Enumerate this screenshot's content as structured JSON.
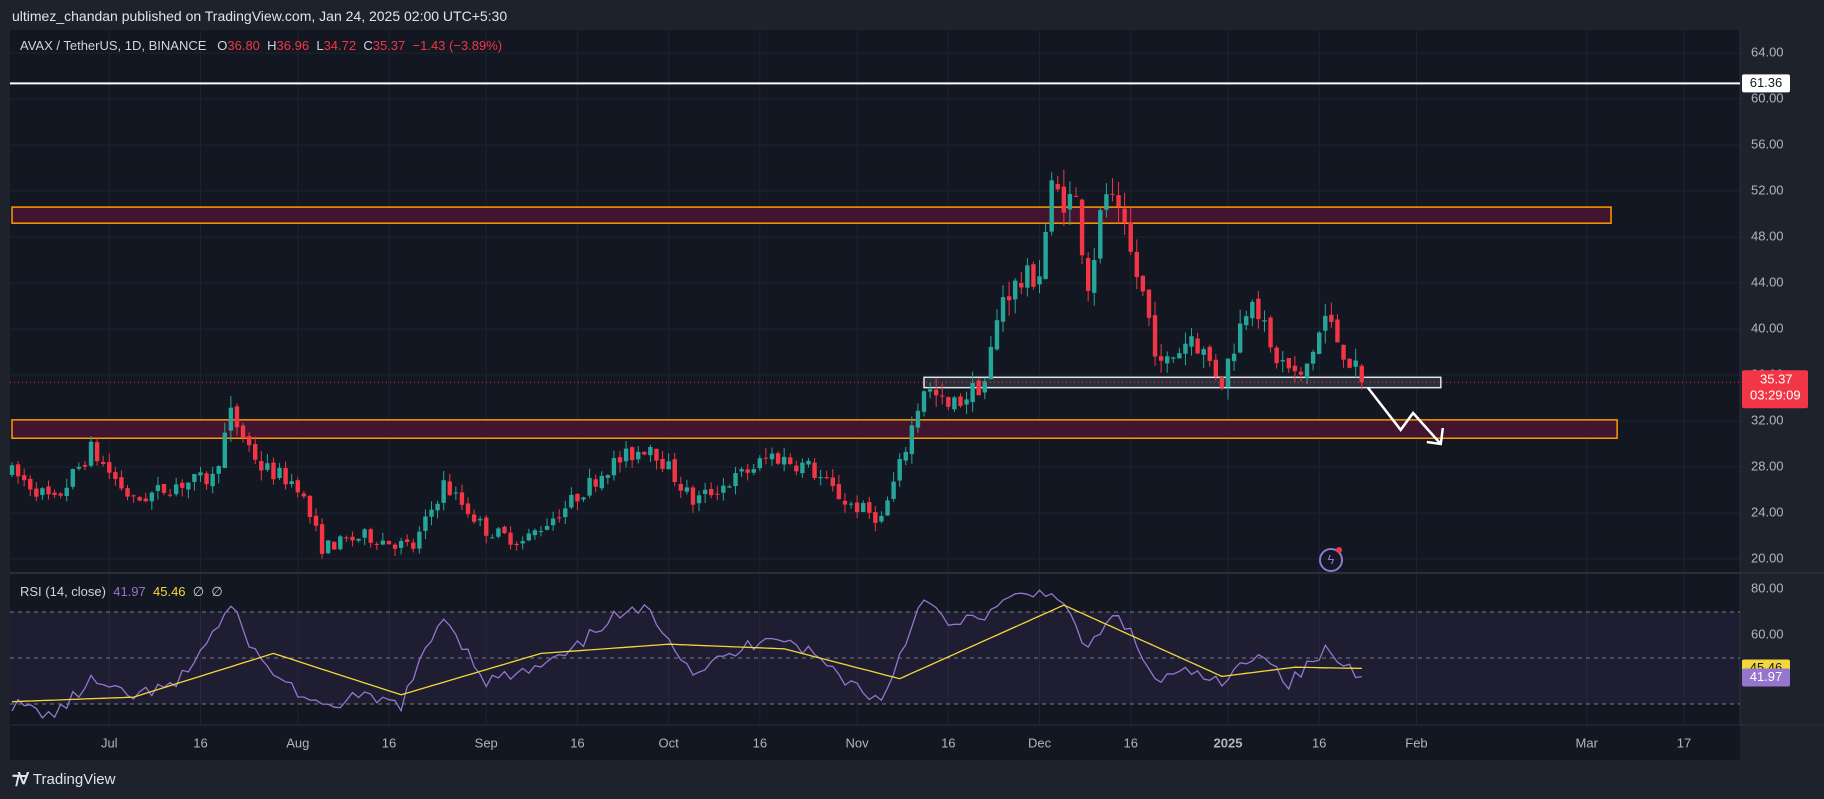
{
  "header": {
    "published": "ultimez_chandan published on TradingView.com, Jan 24, 2025 02:00 UTC+5:30"
  },
  "legend": {
    "symbol": "AVAX / TetherUS, 1D, BINANCE",
    "open_label": "O",
    "open": "36.80",
    "high_label": "H",
    "high": "36.96",
    "low_label": "L",
    "low": "34.72",
    "close_label": "C",
    "close": "35.37",
    "change": "−1.43 (−3.89%)"
  },
  "rsi_legend": {
    "label": "RSI (14, close)",
    "rsi": "41.97",
    "ma": "45.46",
    "d1": "∅",
    "d2": "∅"
  },
  "price_axis": {
    "labels": [
      "64.00",
      "60.00",
      "56.00",
      "52.00",
      "48.00",
      "44.00",
      "40.00",
      "36.00",
      "32.00",
      "28.00",
      "24.00",
      "20.00"
    ],
    "line_label": "61.36",
    "last_price": "35.37",
    "countdown": "03:29:09"
  },
  "rsi_axis": {
    "labels": [
      "80.00",
      "60.00"
    ],
    "ma_badge": "45.46",
    "rsi_badge": "41.97"
  },
  "time_axis": {
    "labels": [
      "Jul",
      "16",
      "Aug",
      "16",
      "Sep",
      "16",
      "Oct",
      "16",
      "Nov",
      "16",
      "Dec",
      "16",
      "2025",
      "16",
      "Feb",
      "Mar",
      "17"
    ]
  },
  "footer": {
    "brand": "TradingView"
  },
  "colors": {
    "up": "#26a69a",
    "down": "#f23645",
    "zone_border": "#ff9800",
    "zone_fill": "#4a1530",
    "rsi": "#9575cd",
    "rsi_ma": "#f2d73a",
    "background": "#131722"
  },
  "chart_data": {
    "type": "candlestick",
    "symbol": "AVAX / TetherUS",
    "interval": "1D",
    "exchange": "BINANCE",
    "ylim": [
      19,
      65
    ],
    "last": {
      "open": 36.8,
      "high": 36.96,
      "low": 34.72,
      "close": 35.37
    },
    "horizontal_line": 61.36,
    "zones": [
      {
        "low": 49.2,
        "high": 50.6,
        "start": "2024-06-15",
        "end": "2025-03-05",
        "kind": "resistance"
      },
      {
        "low": 30.5,
        "high": 32.1,
        "start": "2024-06-15",
        "end": "2025-03-06",
        "kind": "resistance"
      },
      {
        "low": 34.9,
        "high": 35.8,
        "start": "2024-11-12",
        "end": "2025-02-05",
        "kind": "support"
      }
    ],
    "arrow": {
      "from_date": "2025-01-24",
      "from_price": 34.9,
      "to_date": "2025-02-05",
      "to_price": 30.0
    },
    "candle_anchors": [
      [
        "2024-06-15",
        27.5
      ],
      [
        "2024-06-22",
        25.0
      ],
      [
        "2024-06-28",
        29.5
      ],
      [
        "2024-07-05",
        25.0
      ],
      [
        "2024-07-12",
        26.5
      ],
      [
        "2024-07-18",
        27.0
      ],
      [
        "2024-07-21",
        32.5
      ],
      [
        "2024-07-26",
        28.0
      ],
      [
        "2024-08-01",
        26.5
      ],
      [
        "2024-08-05",
        21.0
      ],
      [
        "2024-08-12",
        22.0
      ],
      [
        "2024-08-20",
        21.0
      ],
      [
        "2024-08-25",
        26.5
      ],
      [
        "2024-09-01",
        22.5
      ],
      [
        "2024-09-07",
        21.5
      ],
      [
        "2024-09-14",
        24.5
      ],
      [
        "2024-09-21",
        28.0
      ],
      [
        "2024-09-28",
        30.0
      ],
      [
        "2024-10-05",
        25.0
      ],
      [
        "2024-10-12",
        27.0
      ],
      [
        "2024-10-18",
        29.0
      ],
      [
        "2024-10-24",
        28.0
      ],
      [
        "2024-10-30",
        25.0
      ],
      [
        "2024-11-05",
        23.5
      ],
      [
        "2024-11-08",
        28.0
      ],
      [
        "2024-11-12",
        35.0
      ],
      [
        "2024-11-16",
        33.0
      ],
      [
        "2024-11-22",
        35.5
      ],
      [
        "2024-11-25",
        43.0
      ],
      [
        "2024-12-01",
        45.0
      ],
      [
        "2024-12-03",
        52.0
      ],
      [
        "2024-12-07",
        51.0
      ],
      [
        "2024-12-09",
        44.0
      ],
      [
        "2024-12-12",
        52.0
      ],
      [
        "2024-12-15",
        48.0
      ],
      [
        "2024-12-18",
        43.0
      ],
      [
        "2024-12-21",
        36.5
      ],
      [
        "2024-12-26",
        39.5
      ],
      [
        "2024-12-31",
        35.5
      ],
      [
        "2025-01-05",
        43.5
      ],
      [
        "2025-01-08",
        38.0
      ],
      [
        "2025-01-13",
        35.5
      ],
      [
        "2025-01-17",
        41.0
      ],
      [
        "2025-01-23",
        35.37
      ]
    ],
    "rsi": {
      "period": 14,
      "ylim": [
        20,
        80
      ],
      "guides": [
        70,
        50,
        30
      ],
      "last_rsi": 41.97,
      "last_ma": 45.46,
      "anchors": [
        [
          "2024-06-15",
          30
        ],
        [
          "2024-06-22",
          25
        ],
        [
          "2024-06-28",
          40
        ],
        [
          "2024-07-04",
          33
        ],
        [
          "2024-07-12",
          38
        ],
        [
          "2024-07-21",
          72
        ],
        [
          "2024-07-26",
          48
        ],
        [
          "2024-08-05",
          27
        ],
        [
          "2024-08-10",
          33
        ],
        [
          "2024-08-18",
          30
        ],
        [
          "2024-08-25",
          69
        ],
        [
          "2024-09-01",
          40
        ],
        [
          "2024-09-08",
          44
        ],
        [
          "2024-09-15",
          52
        ],
        [
          "2024-09-21",
          67
        ],
        [
          "2024-09-28",
          71
        ],
        [
          "2024-10-05",
          44
        ],
        [
          "2024-10-12",
          52
        ],
        [
          "2024-10-18",
          61
        ],
        [
          "2024-10-24",
          53
        ],
        [
          "2024-10-30",
          41
        ],
        [
          "2024-11-05",
          31
        ],
        [
          "2024-11-12",
          78
        ],
        [
          "2024-11-16",
          63
        ],
        [
          "2024-11-22",
          69
        ],
        [
          "2024-11-27",
          76
        ],
        [
          "2024-12-03",
          80
        ],
        [
          "2024-12-09",
          54
        ],
        [
          "2024-12-14",
          70
        ],
        [
          "2024-12-20",
          40
        ],
        [
          "2024-12-26",
          44
        ],
        [
          "2024-12-31",
          38
        ],
        [
          "2025-01-06",
          54
        ],
        [
          "2025-01-11",
          39
        ],
        [
          "2025-01-17",
          53
        ],
        [
          "2025-01-23",
          41.97
        ]
      ],
      "ma_anchors": [
        [
          "2024-06-15",
          31
        ],
        [
          "2024-07-05",
          33
        ],
        [
          "2024-07-28",
          52
        ],
        [
          "2024-08-18",
          34
        ],
        [
          "2024-09-10",
          52
        ],
        [
          "2024-10-01",
          56
        ],
        [
          "2024-10-20",
          54
        ],
        [
          "2024-11-08",
          41
        ],
        [
          "2024-12-05",
          73
        ],
        [
          "2024-12-31",
          42
        ],
        [
          "2025-01-12",
          46
        ],
        [
          "2025-01-23",
          45.46
        ]
      ]
    }
  }
}
